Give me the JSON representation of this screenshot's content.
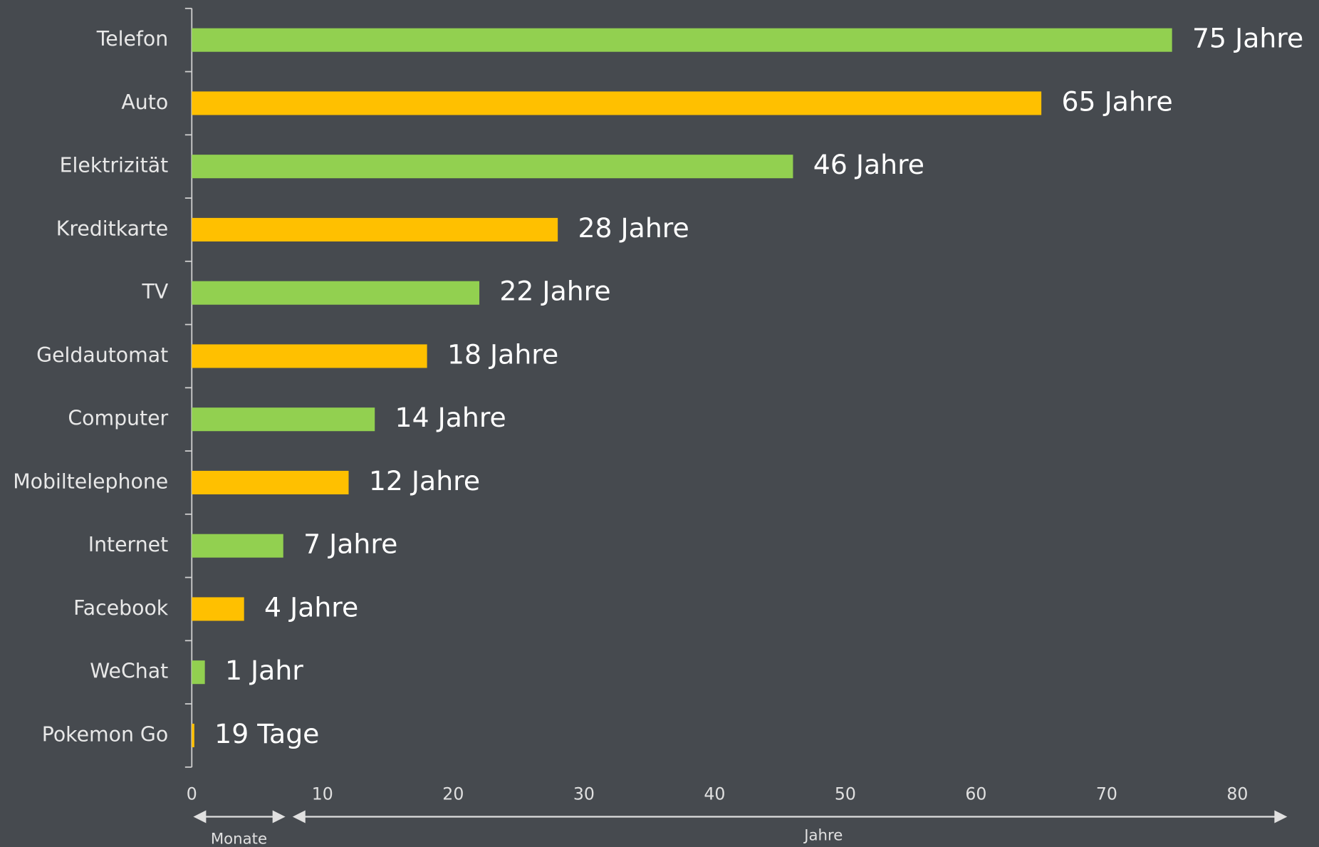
{
  "chart_data": {
    "type": "barh",
    "categories": [
      "Telefon",
      "Auto",
      "Elektrizität",
      "Kreditkarte",
      "TV",
      "Geldautomat",
      "Computer",
      "Mobiltelephone",
      "Internet",
      "Facebook",
      "WeChat",
      "Pokemon Go"
    ],
    "values": [
      75,
      65,
      46,
      28,
      22,
      18,
      14,
      12,
      7,
      4,
      1,
      0.052
    ],
    "value_labels": [
      "75 Jahre",
      "65 Jahre",
      "46 Jahre",
      "28 Jahre",
      "22 Jahre",
      "18 Jahre",
      "14 Jahre",
      "12 Jahre",
      "7 Jahre",
      "4 Jahre",
      "1 Jahr",
      "19 Tage"
    ],
    "colors": [
      "#92d050",
      "#ffc000",
      "#92d050",
      "#ffc000",
      "#92d050",
      "#ffc000",
      "#92d050",
      "#ffc000",
      "#92d050",
      "#ffc000",
      "#92d050",
      "#ffc000"
    ],
    "xlim": [
      0,
      80
    ],
    "xticks": [
      0,
      10,
      20,
      30,
      40,
      50,
      60,
      70,
      80
    ],
    "annotations": [
      "Monate",
      "Jahre"
    ]
  }
}
